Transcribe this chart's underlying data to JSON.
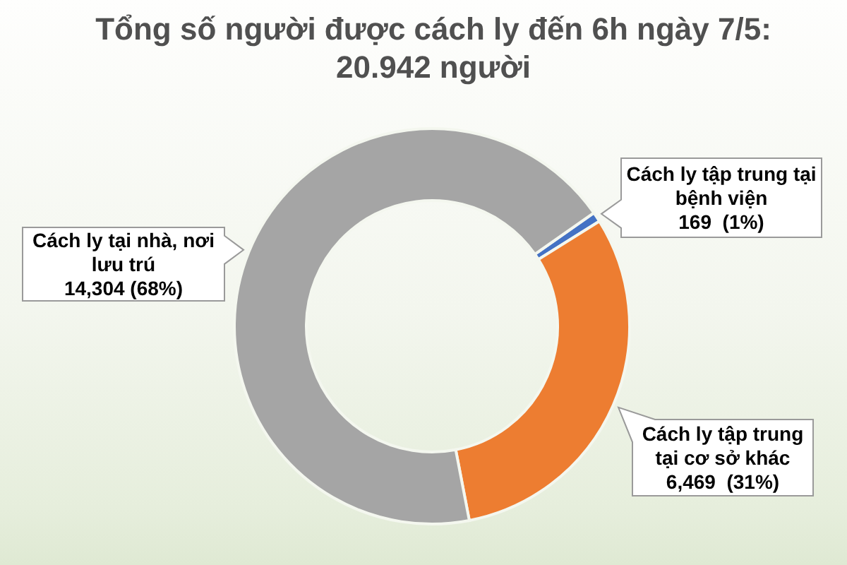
{
  "chart_data": {
    "type": "donut",
    "title": "Tổng số người được cách ly đến 6h ngày 7/5: 20.942 người",
    "categories": [
      "Cách ly tập trung tại bệnh viện",
      "Cách ly tập trung tại cơ sở khác",
      "Cách ly tại nhà, nơi lưu trú"
    ],
    "values": [
      169,
      6469,
      14304
    ],
    "colors": [
      "#4472c4",
      "#ed7d31",
      "#a5a5a5"
    ],
    "value_labels": [
      "169  (1%)",
      "6,469  (31%)",
      "14,304 (68%)"
    ]
  }
}
